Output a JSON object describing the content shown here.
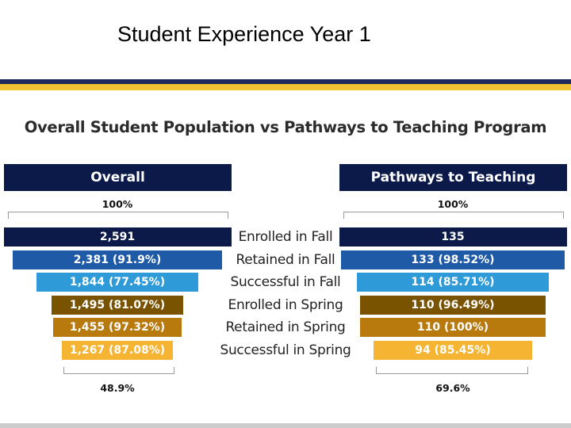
{
  "slide": {
    "title": "Student Experience Year 1"
  },
  "chart_data": {
    "type": "bar",
    "title": "Overall Student Population vs Pathways to Teaching Program",
    "categories": [
      "Enrolled in Fall",
      "Retained in Fall",
      "Successful in Fall",
      "Enrolled in Spring",
      "Retained in Spring",
      "Successful in Spring"
    ],
    "colors": [
      "#0c1a4a",
      "#1f5aa6",
      "#2f9ad8",
      "#7a5300",
      "#b87a0d",
      "#f5b532"
    ],
    "series": [
      {
        "name": "Overall",
        "values": [
          2591,
          2381,
          1844,
          1495,
          1455,
          1267
        ],
        "labels": [
          "2,591",
          "2,381 (91.9%)",
          "1,844 (77.45%)",
          "1,495 (81.07%)",
          "1,455 (97.32%)",
          "1,267 (87.08%)"
        ],
        "top_percent": "100%",
        "bottom_percent": "48.9%"
      },
      {
        "name": "Pathways to Teaching",
        "values": [
          135,
          133,
          114,
          110,
          110,
          94
        ],
        "labels": [
          "135",
          "133 (98.52%)",
          "114 (85.71%)",
          "110 (96.49%)",
          "110 (100%)",
          "94 (85.45%)"
        ],
        "top_percent": "100%",
        "bottom_percent": "69.6%"
      }
    ]
  }
}
